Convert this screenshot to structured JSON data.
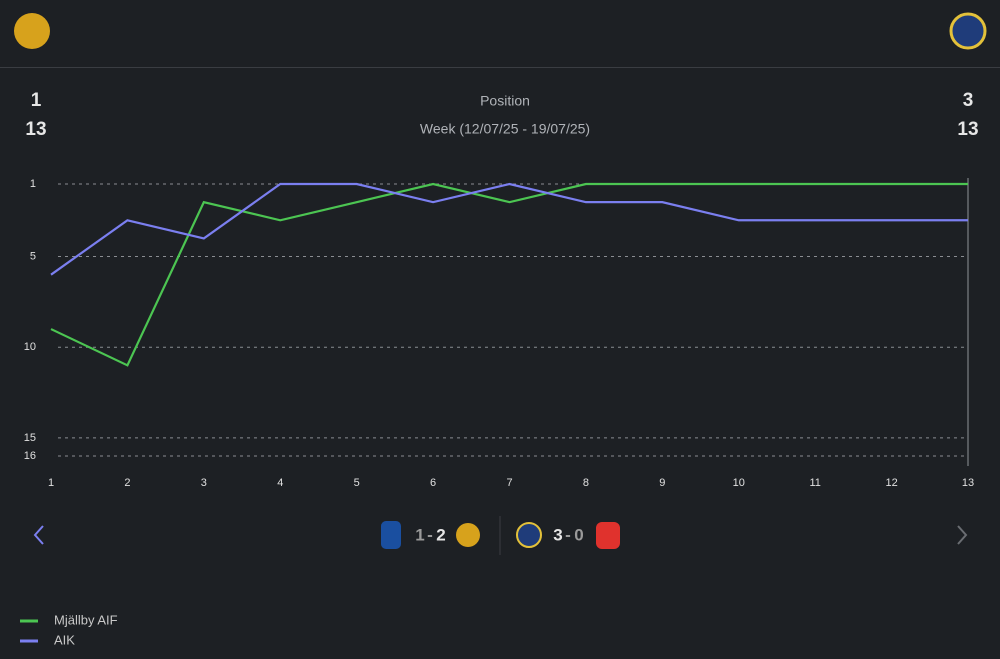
{
  "header": {
    "home_position": 1,
    "home_week": 13,
    "title": "Position",
    "subtitle": "Week (12/07/25 - 19/07/25)",
    "away_position": 3,
    "away_week": 13
  },
  "chart_data": {
    "type": "line",
    "x": [
      1,
      2,
      3,
      4,
      5,
      6,
      7,
      8,
      9,
      10,
      11,
      12,
      13
    ],
    "xlim": [
      1,
      13
    ],
    "xticks": [
      1,
      2,
      3,
      4,
      5,
      6,
      7,
      8,
      9,
      10,
      11,
      12,
      13
    ],
    "ylim": [
      1,
      16
    ],
    "yticks": [
      1,
      5,
      10,
      15,
      16
    ],
    "y_inverted": true,
    "grid": true,
    "series": [
      {
        "name": "Mjällby AIF",
        "color": "#4cc552",
        "values": [
          9,
          11,
          2,
          3,
          2,
          1,
          2,
          1,
          1,
          1,
          1,
          1,
          1
        ]
      },
      {
        "name": "AIK",
        "color": "#7b7ff0",
        "values": [
          6,
          3,
          4,
          1,
          1,
          2,
          1,
          2,
          2,
          3,
          3,
          3,
          3
        ]
      }
    ]
  },
  "matches": [
    {
      "home_score": 1,
      "separator": "-",
      "away_score": 2
    },
    {
      "home_score": 3,
      "separator": "-",
      "away_score": 0
    }
  ]
}
